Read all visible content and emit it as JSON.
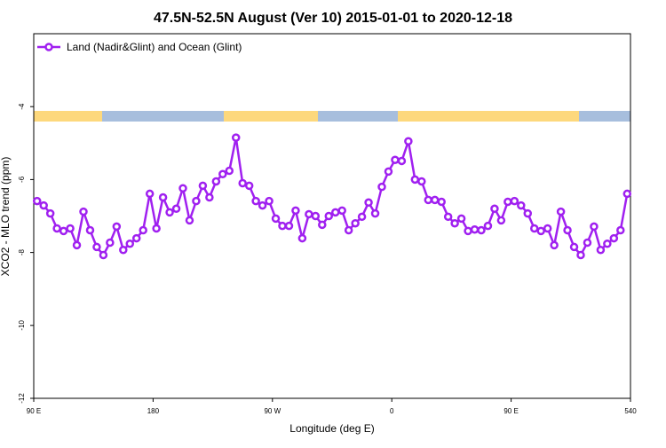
{
  "chart_data": {
    "type": "line",
    "title": "47.5N-52.5N August (Ver 10)   2015-01-01 to 2020-12-18",
    "x_label": "Longitude (deg E)",
    "y_label": "XCO2 - MLO trend (ppm)",
    "x": [
      92.5,
      97.5,
      102.5,
      107.5,
      112.5,
      117.5,
      122.5,
      127.5,
      132.5,
      137.5,
      142.5,
      147.5,
      152.5,
      157.5,
      162.5,
      167.5,
      172.5,
      177.5,
      182.5,
      187.5,
      192.5,
      197.5,
      202.5,
      207.5,
      212.5,
      217.5,
      222.5,
      227.5,
      232.5,
      237.5,
      242.5,
      247.5,
      252.5,
      257.5,
      262.5,
      267.5,
      272.5,
      277.5,
      282.5,
      287.5,
      292.5,
      297.5,
      302.5,
      307.5,
      312.5,
      317.5,
      322.5,
      327.5,
      332.5,
      337.5,
      342.5,
      347.5,
      352.5,
      357.5,
      362.5,
      367.5,
      372.5,
      377.5,
      382.5,
      387.5,
      392.5,
      397.5,
      402.5,
      407.5,
      412.5,
      417.5,
      422.5,
      427.5,
      432.5,
      437.5,
      442.5,
      447.5,
      452.5,
      457.5,
      462.5,
      467.5,
      472.5,
      477.5,
      482.5,
      487.5,
      492.5,
      497.5,
      502.5,
      507.5,
      512.5,
      517.5,
      522.5,
      527.5,
      532.5,
      537.5
    ],
    "series": [
      {
        "name": "Land (Nadir&Glint) and Ocean (Glint)",
        "color": "#a020f0",
        "values": [
          -6.59,
          -6.71,
          -6.93,
          -7.34,
          -7.41,
          -7.34,
          -7.8,
          -6.88,
          -7.39,
          -7.85,
          -8.07,
          -7.73,
          -7.29,
          -7.93,
          -7.76,
          -7.61,
          -7.39,
          -6.39,
          -7.34,
          -6.49,
          -6.9,
          -6.8,
          -6.24,
          -7.12,
          -6.59,
          -6.17,
          -6.49,
          -6.05,
          -5.85,
          -5.76,
          -4.85,
          -6.1,
          -6.17,
          -6.59,
          -6.71,
          -6.59,
          -7.07,
          -7.27,
          -7.27,
          -6.85,
          -7.61,
          -6.95,
          -7.0,
          -7.24,
          -7.0,
          -6.9,
          -6.85,
          -7.39,
          -7.2,
          -7.02,
          -6.63,
          -6.93,
          -6.2,
          -5.78,
          -5.46,
          -5.49,
          -4.95,
          -6.0,
          -6.05,
          -6.56,
          -6.56,
          -6.61,
          -7.02,
          -7.2,
          -7.07,
          -7.41,
          -7.37,
          -7.39,
          -7.27,
          -6.8,
          -7.12,
          -6.61,
          -6.59,
          -6.71,
          -6.93,
          -7.34,
          -7.41,
          -7.34,
          -7.8,
          -6.88,
          -7.39,
          -7.85,
          -8.07,
          -7.73,
          -7.29,
          -7.93,
          -7.76,
          -7.61,
          -7.39,
          -6.39
        ]
      }
    ],
    "xlim": [
      90,
      540
    ],
    "xticks": [
      {
        "value": 90,
        "label": "90 E"
      },
      180,
      {
        "value": 270,
        "label": "90 W"
      },
      {
        "value": 360,
        "label": "0"
      },
      {
        "value": 450,
        "label": "90 E"
      },
      540
    ],
    "ylim": [
      -12,
      -2
    ],
    "yticks": [
      -12,
      -10,
      -8,
      -6,
      -4
    ],
    "legend": "top-left"
  }
}
